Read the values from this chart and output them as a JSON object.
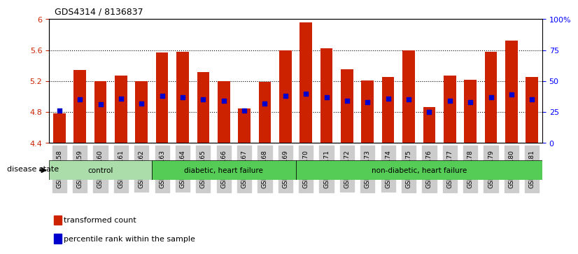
{
  "title": "GDS4314 / 8136837",
  "samples": [
    "GSM662158",
    "GSM662159",
    "GSM662160",
    "GSM662161",
    "GSM662162",
    "GSM662163",
    "GSM662164",
    "GSM662165",
    "GSM662166",
    "GSM662167",
    "GSM662168",
    "GSM662169",
    "GSM662170",
    "GSM662171",
    "GSM662172",
    "GSM662173",
    "GSM662174",
    "GSM662175",
    "GSM662176",
    "GSM662177",
    "GSM662178",
    "GSM662179",
    "GSM662180",
    "GSM662181"
  ],
  "transformed_count": [
    4.78,
    5.34,
    5.2,
    5.27,
    5.2,
    5.57,
    5.58,
    5.32,
    5.2,
    4.85,
    5.19,
    5.6,
    5.96,
    5.62,
    5.35,
    5.21,
    5.25,
    5.6,
    4.86,
    5.27,
    5.22,
    5.58,
    5.72,
    5.25
  ],
  "percentile_rank": [
    26,
    35,
    31,
    36,
    32,
    38,
    37,
    35,
    34,
    26,
    32,
    38,
    40,
    37,
    34,
    33,
    36,
    35,
    25,
    34,
    33,
    37,
    39,
    35
  ],
  "ylim_left": [
    4.4,
    6.0
  ],
  "ylim_right": [
    0,
    100
  ],
  "yticks_left": [
    4.4,
    4.8,
    5.2,
    5.6,
    6.0
  ],
  "ytick_labels_left": [
    "4.4",
    "4.8",
    "5.2",
    "5.6",
    "6"
  ],
  "yticks_right": [
    0,
    25,
    50,
    75,
    100
  ],
  "ytick_labels_right": [
    "0",
    "25",
    "50",
    "75",
    "100%"
  ],
  "bar_color": "#cc2200",
  "dot_color": "#0000cc",
  "bar_width": 0.6,
  "groups": [
    {
      "label": "control",
      "start": 0,
      "end": 4,
      "color": "#99ee99"
    },
    {
      "label": "diabetic, heart failure",
      "start": 5,
      "end": 11,
      "color": "#55cc55"
    },
    {
      "label": "non-diabetic, heart failure",
      "start": 12,
      "end": 23,
      "color": "#55cc55"
    }
  ],
  "disease_state_label": "disease state",
  "xlabel_color": "#444444",
  "tick_label_bg": "#cccccc",
  "legend_items": [
    {
      "label": "transformed count",
      "color": "#cc2200",
      "marker": "s"
    },
    {
      "label": "percentile rank within the sample",
      "color": "#0000cc",
      "marker": "s"
    }
  ],
  "grid_color": "#888888",
  "dotted_lines": [
    4.8,
    5.2,
    5.6
  ]
}
